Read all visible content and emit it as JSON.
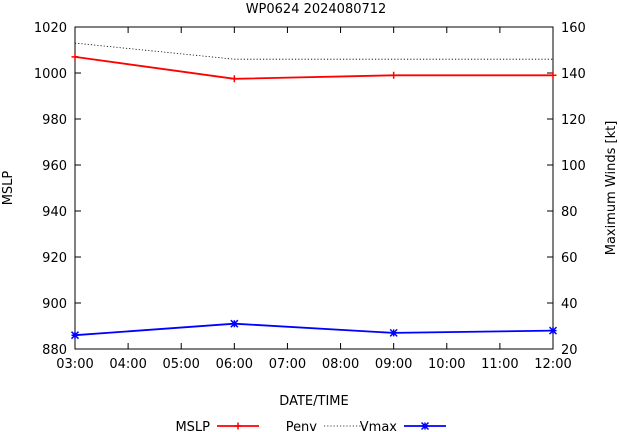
{
  "chart_data": {
    "type": "line",
    "title": "WP0624 2024080712",
    "xlabel": "DATE/TIME",
    "ylabel_left": "MSLP",
    "ylabel_right": "Maximum Winds [kt]",
    "x_ticks": [
      "03:00",
      "04:00",
      "05:00",
      "06:00",
      "07:00",
      "08:00",
      "09:00",
      "10:00",
      "11:00",
      "12:00"
    ],
    "xlim": [
      "03:00",
      "12:00"
    ],
    "ylim_left": [
      880,
      1020
    ],
    "yticks_left": [
      880,
      900,
      920,
      940,
      960,
      980,
      1000,
      1020
    ],
    "ylim_right": [
      20,
      160
    ],
    "yticks_right": [
      20,
      40,
      60,
      80,
      100,
      120,
      140,
      160
    ],
    "grid": false,
    "legend_position": "bottom",
    "series": [
      {
        "name": "MSLP",
        "axis": "left",
        "color": "#ff0000",
        "marker": "plus",
        "x": [
          "03:00",
          "06:00",
          "09:00",
          "12:00"
        ],
        "values": [
          1007,
          997.5,
          999,
          999
        ]
      },
      {
        "name": "Penv",
        "axis": "left",
        "color": "#000000",
        "style": "dotted",
        "x": [
          "03:00",
          "06:00",
          "09:00",
          "12:00"
        ],
        "values": [
          1013,
          1006,
          1006,
          1006
        ]
      },
      {
        "name": "Vmax",
        "axis": "right",
        "color": "#0000ff",
        "marker": "star",
        "x": [
          "03:00",
          "06:00",
          "09:00",
          "12:00"
        ],
        "values": [
          26,
          31,
          27,
          28
        ]
      }
    ]
  }
}
